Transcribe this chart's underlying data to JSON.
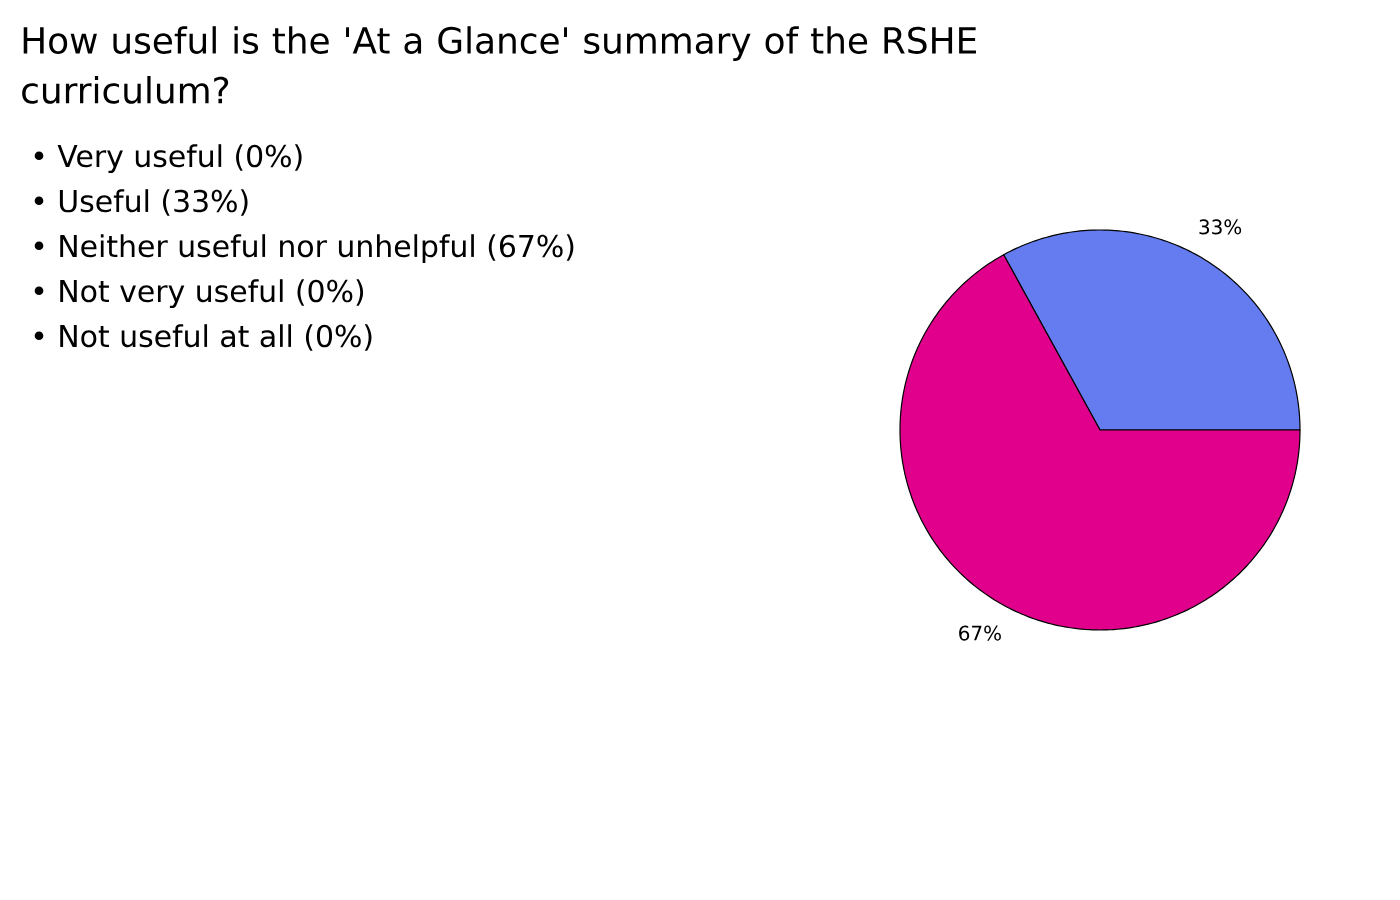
{
  "chart_data": {
    "type": "pie",
    "title": "How useful is the 'At a Glance' summary of the RSHE curriculum?",
    "categories": [
      null,
      null,
      null,
      null,
      null
    ],
    "values": [
      0,
      33,
      67,
      0,
      0
    ],
    "colors": [
      null,
      "#647cef",
      "#e0008c",
      null,
      null
    ],
    "value_labels": [
      null,
      "33%",
      "67%",
      null,
      null
    ],
    "annotations": [
      "• Very useful (0%)",
      "• Useful (33%)",
      "• Neither useful nor unhelpful (67%)",
      "• Not very useful (0%)",
      "• Not useful at all (0%)"
    ]
  }
}
